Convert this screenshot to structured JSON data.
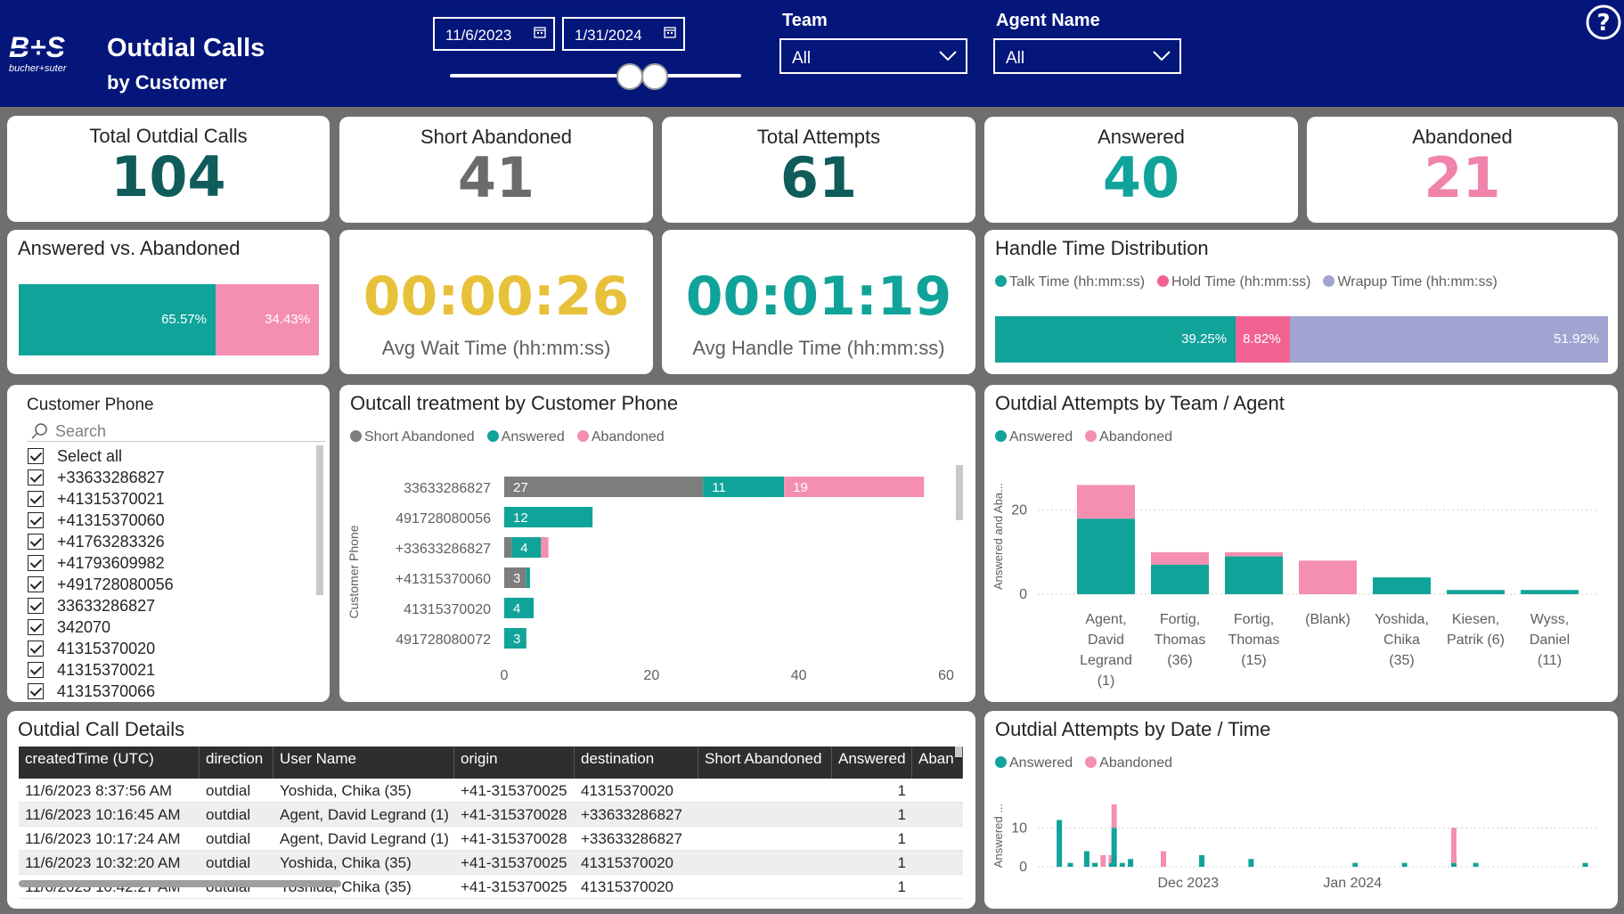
{
  "header": {
    "logo_text": "bucher+suter",
    "title_line1": "Outdial Calls",
    "title_line2": "by Customer",
    "start_date": "11/6/2023",
    "end_date": "1/31/2024",
    "team_label": "Team",
    "team_value": "All",
    "agent_label": "Agent Name",
    "agent_value": "All",
    "help_icon": "question-icon"
  },
  "kpis": [
    {
      "label": "Total Outdial Calls",
      "value": "104",
      "color": "#0f5c5a"
    },
    {
      "label": "Short Abandoned",
      "value": "41",
      "color": "#6b6b6b"
    },
    {
      "label": "Total Attempts",
      "value": "61",
      "color": "#0f5c5a"
    },
    {
      "label": "Answered",
      "value": "40",
      "color": "#10a39a"
    },
    {
      "label": "Abandoned",
      "value": "21",
      "color": "#f083ab"
    }
  ],
  "answered_vs_abandoned": {
    "title": "Answered vs. Abandoned",
    "answered_pct": 65.57,
    "abandoned_pct": 34.43,
    "answered_label": "65.57%",
    "abandoned_label": "34.43%"
  },
  "avg_wait": {
    "value": "00:00:26",
    "label": "Avg Wait Time (hh:mm:ss)",
    "color": "#e8c13a"
  },
  "avg_handle": {
    "value": "00:01:19",
    "label": "Avg Handle Time (hh:mm:ss)",
    "color": "#10a39a"
  },
  "handle_time": {
    "title": "Handle Time Distribution",
    "legend": [
      "Talk Time (hh:mm:ss)",
      "Hold Time (hh:mm:ss)",
      "Wrapup Time (hh:mm:ss)"
    ],
    "talk_pct": 39.25,
    "hold_pct": 8.82,
    "wrapup_pct": 51.92,
    "talk_label": "39.25%",
    "hold_label": "8.82%",
    "wrapup_label": "51.92%"
  },
  "colors": {
    "teal": "#10a39a",
    "pink": "#f48fb1",
    "gray": "#7d7d7d",
    "lavender": "#a0a4d0",
    "navy": "#04167a"
  },
  "slicer": {
    "title": "Customer Phone",
    "search_placeholder": "Search",
    "items": [
      "Select all",
      "+33633286827",
      "+41315370021",
      "+41315370060",
      "+41763283326",
      "+41793609982",
      "+491728080056",
      "33633286827",
      "342070",
      "41315370020",
      "41315370021",
      "41315370066"
    ]
  },
  "outcall": {
    "title": "Outcall treatment by Customer Phone",
    "legend": [
      "Short Abandoned",
      "Answered",
      "Abandoned"
    ],
    "axis_title": "Customer Phone"
  },
  "chart_data": [
    {
      "type": "bar",
      "orientation": "horizontal",
      "stacked": true,
      "title": "Outcall treatment by Customer Phone",
      "ylabel": "Customer Phone",
      "categories": [
        "33633286827",
        "491728080056",
        "+33633286827",
        "+41315370060",
        "41315370020",
        "491728080072"
      ],
      "series": [
        {
          "name": "Short Abandoned",
          "values": [
            27,
            0,
            1,
            3,
            0,
            0
          ],
          "labels": [
            "27",
            "",
            "",
            "3",
            "",
            ""
          ]
        },
        {
          "name": "Answered",
          "values": [
            11,
            12,
            4,
            0.5,
            4,
            3
          ],
          "labels": [
            "11",
            "12",
            "4",
            "",
            "4",
            "3"
          ]
        },
        {
          "name": "Abandoned",
          "values": [
            19,
            0,
            1,
            0,
            0,
            0
          ],
          "labels": [
            "19",
            "",
            "",
            "",
            "",
            ""
          ]
        }
      ],
      "xlim": [
        0,
        60
      ],
      "xticks": [
        "0",
        "20",
        "40",
        "60"
      ]
    },
    {
      "type": "bar",
      "stacked": true,
      "title": "Outdial Attempts by Team / Agent",
      "ylabel": "Answered and Aba...",
      "categories": [
        "Agent, David Legrand (1)",
        "Fortig, Thomas (36)",
        "Fortig, Thomas (15)",
        "(Blank)",
        "Yoshida, Chika (35)",
        "Kiesen, Patrik (6)",
        "Wyss, Daniel (11)"
      ],
      "category_labels": [
        [
          "Agent,",
          "David",
          "Legrand",
          "(1)"
        ],
        [
          "Fortig,",
          "Thomas",
          "(36)"
        ],
        [
          "Fortig,",
          "Thomas",
          "(15)"
        ],
        [
          "(Blank)"
        ],
        [
          "Yoshida,",
          "Chika",
          "(35)"
        ],
        [
          "Kiesen,",
          "Patrik (6)"
        ],
        [
          "Wyss,",
          "Daniel",
          "(11)"
        ]
      ],
      "series": [
        {
          "name": "Answered",
          "values": [
            18,
            7,
            9,
            0,
            4,
            1,
            1
          ]
        },
        {
          "name": "Abandoned",
          "values": [
            8,
            3,
            1,
            8,
            0,
            0,
            0
          ]
        }
      ],
      "ylim": [
        0,
        28
      ],
      "yticks": [
        "0",
        "20"
      ]
    },
    {
      "type": "bar",
      "stacked": true,
      "title": "Outdial Attempts by Date / Time",
      "ylabel": "Answered ...",
      "series": [
        {
          "name": "Answered",
          "values": [
            12,
            1,
            4,
            1,
            0,
            1,
            10,
            1,
            2,
            0,
            3,
            2,
            1,
            1,
            1,
            1,
            1
          ]
        },
        {
          "name": "Abandoned",
          "values": [
            0,
            0,
            0,
            0,
            3,
            2,
            6,
            0,
            0,
            4,
            0,
            0,
            0,
            0,
            9,
            0,
            0
          ]
        }
      ],
      "x_positions": [
        0.01,
        0.03,
        0.06,
        0.075,
        0.09,
        0.105,
        0.11,
        0.125,
        0.14,
        0.2,
        0.27,
        0.36,
        0.55,
        0.64,
        0.73,
        0.77,
        0.97
      ],
      "ylim": [
        0,
        16
      ],
      "yticks": [
        "0",
        "10"
      ],
      "xticks": [
        "Dec 2023",
        "Jan 2024"
      ]
    }
  ],
  "team_agent": {
    "title": "Outdial Attempts by Team / Agent",
    "legend": [
      "Answered",
      "Abandoned"
    ]
  },
  "date_time": {
    "title": "Outdial Attempts by Date / Time",
    "legend": [
      "Answered",
      "Abandoned"
    ]
  },
  "details": {
    "title": "Outdial Call Details",
    "columns": [
      "createdTime (UTC)",
      "direction",
      "User Name",
      "origin",
      "destination",
      "Short Abandoned",
      "Answered",
      "Aban"
    ],
    "rows": [
      [
        "11/6/2023 8:37:56 AM",
        "outdial",
        "Yoshida, Chika (35)",
        "+41-315370025",
        "41315370020",
        "",
        "1",
        ""
      ],
      [
        "11/6/2023 10:16:45 AM",
        "outdial",
        "Agent, David Legrand (1)",
        "+41-315370028",
        "+33633286827",
        "",
        "1",
        ""
      ],
      [
        "11/6/2023 10:17:24 AM",
        "outdial",
        "Agent, David Legrand (1)",
        "+41-315370028",
        "+33633286827",
        "",
        "1",
        ""
      ],
      [
        "11/6/2023 10:32:20 AM",
        "outdial",
        "Yoshida, Chika (35)",
        "+41-315370025",
        "41315370020",
        "",
        "1",
        ""
      ],
      [
        "11/6/2023 10:42:27 AM",
        "outdial",
        "Yoshida, Chika (35)",
        "+41-315370025",
        "41315370020",
        "",
        "1",
        ""
      ]
    ]
  }
}
